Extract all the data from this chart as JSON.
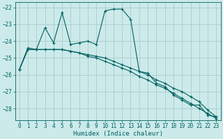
{
  "xlabel": "Humidex (Indice chaleur)",
  "bg_color": "#cceaea",
  "grid_color": "#aacccc",
  "line_color": "#006060",
  "xlim": [
    -0.5,
    23.5
  ],
  "ylim": [
    -28.7,
    -21.7
  ],
  "yticks": [
    -28,
    -27,
    -26,
    -25,
    -24,
    -23,
    -22
  ],
  "xticks": [
    0,
    1,
    2,
    3,
    4,
    5,
    6,
    7,
    8,
    9,
    10,
    11,
    12,
    13,
    14,
    15,
    16,
    17,
    18,
    19,
    20,
    21,
    22,
    23
  ],
  "line1_x": [
    0,
    1,
    2,
    3,
    4,
    5,
    6,
    7,
    8,
    9,
    10,
    11,
    12,
    13,
    14,
    15,
    16,
    17,
    18,
    19,
    20,
    21,
    22,
    23
  ],
  "line1_y": [
    -25.7,
    -24.4,
    -24.5,
    -23.2,
    -24.1,
    -22.3,
    -24.2,
    -24.1,
    -24.0,
    -24.2,
    -22.2,
    -22.1,
    -22.1,
    -22.7,
    -25.8,
    -25.9,
    -26.5,
    -26.7,
    -27.2,
    -27.5,
    -27.8,
    -27.8,
    -28.4,
    -28.5
  ],
  "line2_x": [
    0,
    1,
    2,
    3,
    4,
    5,
    6,
    7,
    8,
    9,
    10,
    11,
    12,
    13,
    14,
    15,
    16,
    17,
    18,
    19,
    20,
    21,
    22,
    23
  ],
  "line2_y": [
    -25.7,
    -24.5,
    -24.5,
    -24.5,
    -24.5,
    -24.5,
    -24.6,
    -24.7,
    -24.8,
    -24.9,
    -25.0,
    -25.2,
    -25.4,
    -25.6,
    -25.8,
    -26.0,
    -26.3,
    -26.5,
    -26.8,
    -27.0,
    -27.3,
    -27.6,
    -28.1,
    -28.5
  ],
  "line3_x": [
    0,
    1,
    2,
    3,
    4,
    5,
    6,
    7,
    8,
    9,
    10,
    11,
    12,
    13,
    14,
    15,
    16,
    17,
    18,
    19,
    20,
    21,
    22,
    23
  ],
  "line3_y": [
    -25.7,
    -24.5,
    -24.5,
    -24.5,
    -24.5,
    -24.5,
    -24.6,
    -24.7,
    -24.9,
    -25.0,
    -25.2,
    -25.4,
    -25.6,
    -25.8,
    -26.1,
    -26.3,
    -26.6,
    -26.8,
    -27.1,
    -27.4,
    -27.7,
    -28.0,
    -28.3,
    -28.6
  ]
}
